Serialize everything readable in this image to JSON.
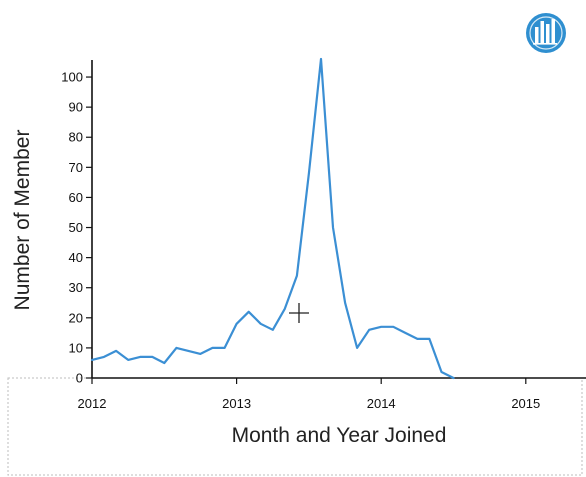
{
  "app": {
    "logo_icon": "bar-chart-logo-icon",
    "accent_color": "#2f8fd0"
  },
  "chart_data": {
    "type": "line",
    "title": "",
    "xlabel": "Month and Year Joined",
    "ylabel": "Number of Member",
    "xlim": [
      "2012-01",
      "2015-06"
    ],
    "ylim": [
      0,
      105
    ],
    "x_ticks": [
      "2012",
      "2013",
      "2014",
      "2015"
    ],
    "y_ticks": [
      0,
      10,
      20,
      30,
      40,
      50,
      60,
      70,
      80,
      90,
      100
    ],
    "grid": false,
    "legend": "none",
    "series": [
      {
        "color": "#3b8fd4",
        "x": [
          "2012-01",
          "2012-02",
          "2012-03",
          "2012-04",
          "2012-05",
          "2012-06",
          "2012-07",
          "2012-08",
          "2012-09",
          "2012-10",
          "2012-11",
          "2012-12",
          "2013-01",
          "2013-02",
          "2013-03",
          "2013-04",
          "2013-05",
          "2013-06",
          "2013-07",
          "2013-08",
          "2013-09",
          "2013-10",
          "2013-11",
          "2013-12",
          "2014-01",
          "2014-02",
          "2014-03",
          "2014-04",
          "2014-05",
          "2014-06",
          "2014-07"
        ],
        "y": [
          6,
          7,
          9,
          6,
          7,
          7,
          5,
          10,
          9,
          8,
          10,
          10,
          18,
          22,
          18,
          16,
          23,
          34,
          68,
          106,
          50,
          25,
          10,
          16,
          17,
          17,
          15,
          13,
          13,
          2,
          0
        ]
      }
    ]
  }
}
